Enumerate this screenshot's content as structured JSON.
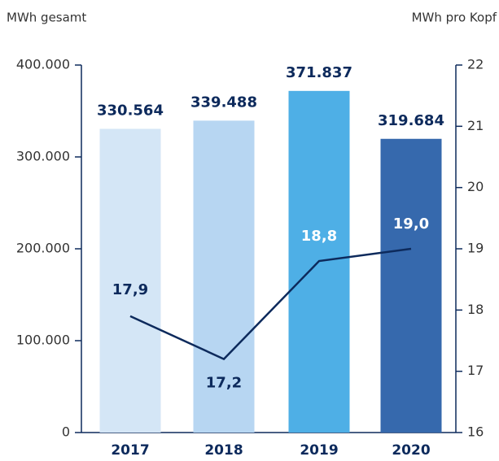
{
  "chart_data": {
    "type": "combo",
    "ylabel": "MWh gesamt",
    "y2label": "MWh pro Kopf",
    "categories": [
      "2017",
      "2018",
      "2019",
      "2020"
    ],
    "series": [
      {
        "type": "bar",
        "colors": [
          "#d4e6f6",
          "#b7d6f2",
          "#4eafe6",
          "#3669ad"
        ],
        "values": [
          330564,
          339488,
          371837,
          319684
        ],
        "value_labels": [
          "330.564",
          "339.488",
          "371.837",
          "319.684"
        ]
      },
      {
        "type": "line",
        "axis": "y2",
        "color": "#0d2a5c",
        "values": [
          17.9,
          17.2,
          18.8,
          19.0
        ],
        "value_labels": [
          "17,9",
          "17,2",
          "18,8",
          "19,0"
        ]
      }
    ],
    "ylim": [
      0,
      400000
    ],
    "yticks": [
      {
        "value": 0,
        "label": "0"
      },
      {
        "value": 100000,
        "label": "100.000"
      },
      {
        "value": 200000,
        "label": "200.000"
      },
      {
        "value": 300000,
        "label": "300.000"
      },
      {
        "value": 400000,
        "label": "400.000"
      }
    ],
    "y2lim": [
      16,
      22
    ],
    "y2ticks": [
      16,
      17,
      18,
      19,
      20,
      21,
      22
    ]
  }
}
